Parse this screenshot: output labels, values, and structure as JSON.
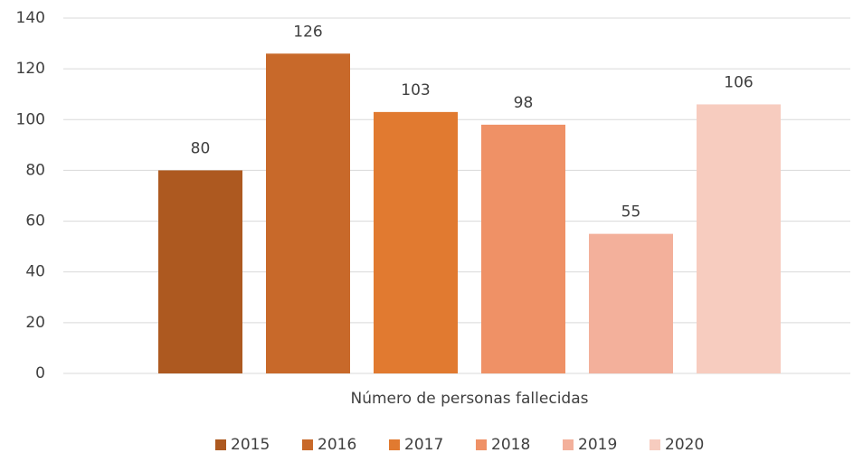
{
  "chart_data": {
    "type": "bar",
    "categories": [
      "Número de personas fallecidas"
    ],
    "series": [
      {
        "name": "2015",
        "color": "#ad5920",
        "values": [
          80
        ]
      },
      {
        "name": "2016",
        "color": "#c8692a",
        "values": [
          126
        ]
      },
      {
        "name": "2017",
        "color": "#e17a30",
        "values": [
          103
        ]
      },
      {
        "name": "2018",
        "color": "#ef9166",
        "values": [
          98
        ]
      },
      {
        "name": "2019",
        "color": "#f3b09b",
        "values": [
          55
        ]
      },
      {
        "name": "2020",
        "color": "#f7ccbf",
        "values": [
          106
        ]
      }
    ],
    "ylim": [
      0,
      140
    ],
    "yticks": [
      0,
      20,
      40,
      60,
      80,
      100,
      120,
      140
    ],
    "grid": true,
    "legend": "bottom"
  }
}
